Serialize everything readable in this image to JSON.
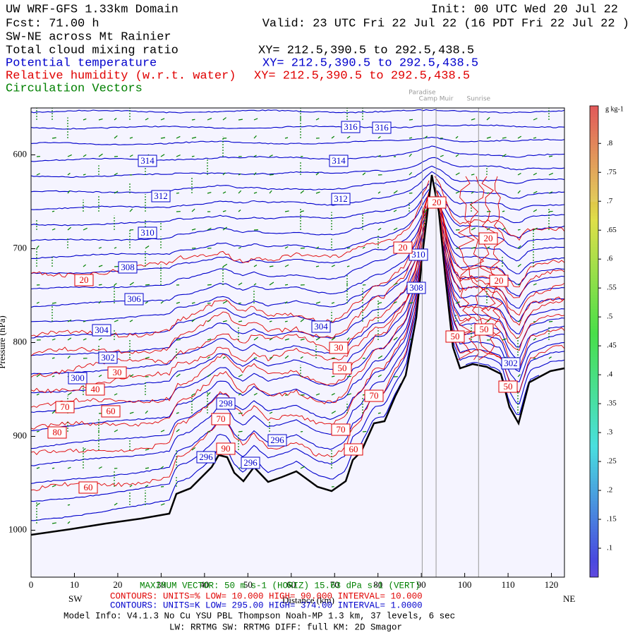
{
  "header": {
    "line1_left": "UW WRF-GFS 1.33km Domain",
    "line1_right": "Init: 00 UTC Wed 20 Jul 22",
    "line2_left": "Fcst:   71.00 h",
    "line2_right": "Valid: 23 UTC Fri 22 Jul 22   (16 PDT Fri 22 Jul 22  )",
    "section": "SW-NE across Mt Rainier",
    "fields": [
      {
        "name": "Total cloud mixing ratio",
        "xy": "XY= 212.5,390.5 to 292.5,438.5",
        "color": "#000000"
      },
      {
        "name": "Potential temperature",
        "xy": "XY= 212.5,390.5 to 292.5,438.5",
        "color": "#0000cc"
      },
      {
        "name": "Relative humidity (w.r.t. water)",
        "xy": "XY= 212.5,390.5 to 292.5,438.5",
        "color": "#e00000"
      },
      {
        "name": "Circulation Vectors",
        "color": "#008000"
      }
    ]
  },
  "chart_data": {
    "type": "contour",
    "xlabel": "Distance (km)",
    "ylabel": "Pressure (hPa)",
    "xlim": [
      0,
      123
    ],
    "xticks": [
      0,
      10,
      20,
      30,
      40,
      50,
      60,
      70,
      80,
      90,
      100,
      110,
      120
    ],
    "ylim": [
      1050,
      550
    ],
    "yticks": [
      600,
      700,
      800,
      900,
      1000
    ],
    "left_end": "SW",
    "right_end": "NE",
    "locations": [
      {
        "name": "Paradise",
        "x": 90.2
      },
      {
        "name": "Camp Muir",
        "x": 93.4
      },
      {
        "name": "Sunrise",
        "x": 103.2
      }
    ],
    "theta_labels": [
      316,
      316,
      314,
      314,
      312,
      312,
      310,
      310,
      308,
      308,
      306,
      304,
      304,
      302,
      302,
      300,
      298,
      296,
      296,
      296
    ],
    "rh_labels": [
      20,
      20,
      20,
      20,
      20,
      30,
      30,
      40,
      50,
      50,
      50,
      50,
      60,
      60,
      60,
      70,
      70,
      70,
      70,
      80,
      90
    ],
    "theta_color": "#0000cc",
    "rh_color": "#e00000",
    "vector_color": "#008000",
    "colorbar": {
      "unit": "g kg-1",
      "clim": [
        0.05,
        0.865
      ],
      "ticks": [
        {
          "value": 0.1,
          "label": ".1"
        },
        {
          "value": 0.15,
          "label": ".15"
        },
        {
          "value": 0.2,
          "label": ".2"
        },
        {
          "value": 0.25,
          "label": ".25"
        },
        {
          "value": 0.3,
          "label": ".3"
        },
        {
          "value": 0.35,
          "label": ".35"
        },
        {
          "value": 0.4,
          "label": ".4"
        },
        {
          "value": 0.45,
          "label": ".45"
        },
        {
          "value": 0.5,
          "label": ".5"
        },
        {
          "value": 0.55,
          "label": ".55"
        },
        {
          "value": 0.6,
          "label": ".6"
        },
        {
          "value": 0.65,
          "label": ".65"
        },
        {
          "value": 0.7,
          "label": ".7"
        },
        {
          "value": 0.75,
          "label": ".75"
        },
        {
          "value": 0.8,
          "label": ".8"
        }
      ]
    }
  },
  "footer": {
    "vector": "MAXIMUM VECTOR:  50 m s-1 (HORIZ)     15.63 dPa s-1 (VERT)",
    "rh_contours": "CONTOURS:  UNITS=%  LOW=  10.000       HIGH=  90.000       INTERVAL=   10.000",
    "theta_contours": "CONTOURS:  UNITS=K  LOW=  295.00       HIGH=  374.00       INTERVAL=   1.0000",
    "model_info": "Model Info: V4.1.3    No Cu    YSU PBL   Thompson       Noah-MP    1.3 km,   37 levels,     6 sec",
    "physics": "LW: RRTMG  SW: RRTMG      DIFF: full     KM: 2D Smagor"
  }
}
